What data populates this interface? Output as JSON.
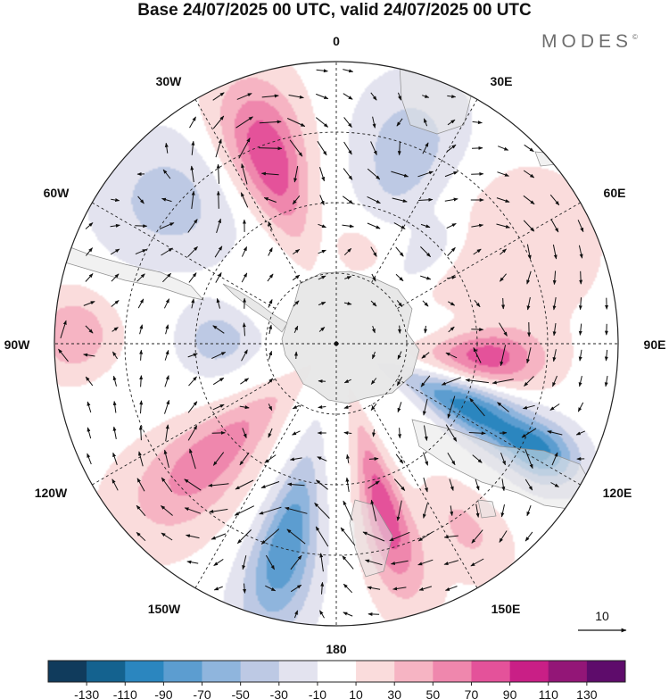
{
  "title": "Base 24/07/2025 00 UTC, valid 24/07/2025 00 UTC",
  "logo": {
    "text": "MODES",
    "mark": "©"
  },
  "map": {
    "projection": "south-polar-stereographic",
    "lon_labels": {
      "lon_0": "0",
      "lon_30e": "30E",
      "lon_60e": "60E",
      "lon_90e": "90E",
      "lon_120e": "120E",
      "lon_150e": "150E",
      "lon_180": "180",
      "lon_150w": "150W",
      "lon_120w": "120W",
      "lon_90w": "90W",
      "lon_60w": "60W",
      "lon_30w": "30W"
    },
    "reference_vector": {
      "label": "10"
    },
    "colors": {
      "land": "#e6e6e6",
      "coast": "#8f8f8f",
      "grid": "#222222",
      "arrow": "#111111"
    }
  },
  "colorbar": {
    "colors": [
      "#103b5c",
      "#14628f",
      "#2b86bf",
      "#5c9dd0",
      "#8fb5dd",
      "#bdc9e4",
      "#e3e3ef",
      "#ffffff",
      "#fadcdc",
      "#f6b4c3",
      "#ef87ad",
      "#e4529a",
      "#c91f86",
      "#931677",
      "#5e0c6b"
    ],
    "ticks": [
      "-130",
      "-110",
      "-90",
      "-70",
      "-50",
      "-30",
      "-10",
      "10",
      "30",
      "50",
      "70",
      "90",
      "110",
      "130"
    ]
  },
  "anomalies": [
    {
      "name": "anom-30w-high",
      "value": 90,
      "r": 0.7,
      "az": -20,
      "sa": 0.13,
      "sr": 0.2
    },
    {
      "name": "anom-30e-low",
      "value": -45,
      "r": 0.72,
      "az": 20,
      "sa": 0.17,
      "sr": 0.18
    },
    {
      "name": "anom-60w-low",
      "value": -40,
      "r": 0.78,
      "az": -50,
      "sa": 0.2,
      "sr": 0.17
    },
    {
      "name": "anom-60e-high",
      "value": 30,
      "r": 0.7,
      "az": 62,
      "sa": 0.25,
      "sr": 0.22
    },
    {
      "name": "anom-90e-high",
      "value": 80,
      "r": 0.54,
      "az": 95,
      "sa": 0.12,
      "sr": 0.14
    },
    {
      "name": "anom-110e-low",
      "value": -100,
      "r": 0.53,
      "az": 116,
      "sa": 0.11,
      "sr": 0.17
    },
    {
      "name": "anom-120e-low",
      "value": -80,
      "r": 0.82,
      "az": 118,
      "sa": 0.08,
      "sr": 0.1
    },
    {
      "name": "anom-160e-high",
      "value": 85,
      "r": 0.62,
      "az": 164,
      "sa": 0.09,
      "sr": 0.22
    },
    {
      "name": "anom-145e-high",
      "value": 35,
      "r": 0.8,
      "az": 145,
      "sa": 0.1,
      "sr": 0.14
    },
    {
      "name": "anom-165w-low",
      "value": -90,
      "r": 0.74,
      "az": -166,
      "sa": 0.1,
      "sr": 0.22
    },
    {
      "name": "anom-120w-high",
      "value": 65,
      "r": 0.6,
      "az": -132,
      "sa": 0.16,
      "sr": 0.25
    },
    {
      "name": "anom-90w-low",
      "value": -45,
      "r": 0.42,
      "az": -88,
      "sa": 0.18,
      "sr": 0.09
    },
    {
      "name": "anom-85w-high",
      "value": 50,
      "r": 0.93,
      "az": -88,
      "sa": 0.11,
      "sr": 0.1
    },
    {
      "name": "anom-45e-low",
      "value": -30,
      "r": 0.47,
      "az": 45,
      "sa": 0.12,
      "sr": 0.1
    },
    {
      "name": "anom-10e-high",
      "value": 20,
      "r": 0.35,
      "az": 15,
      "sa": 0.22,
      "sr": 0.08
    }
  ]
}
